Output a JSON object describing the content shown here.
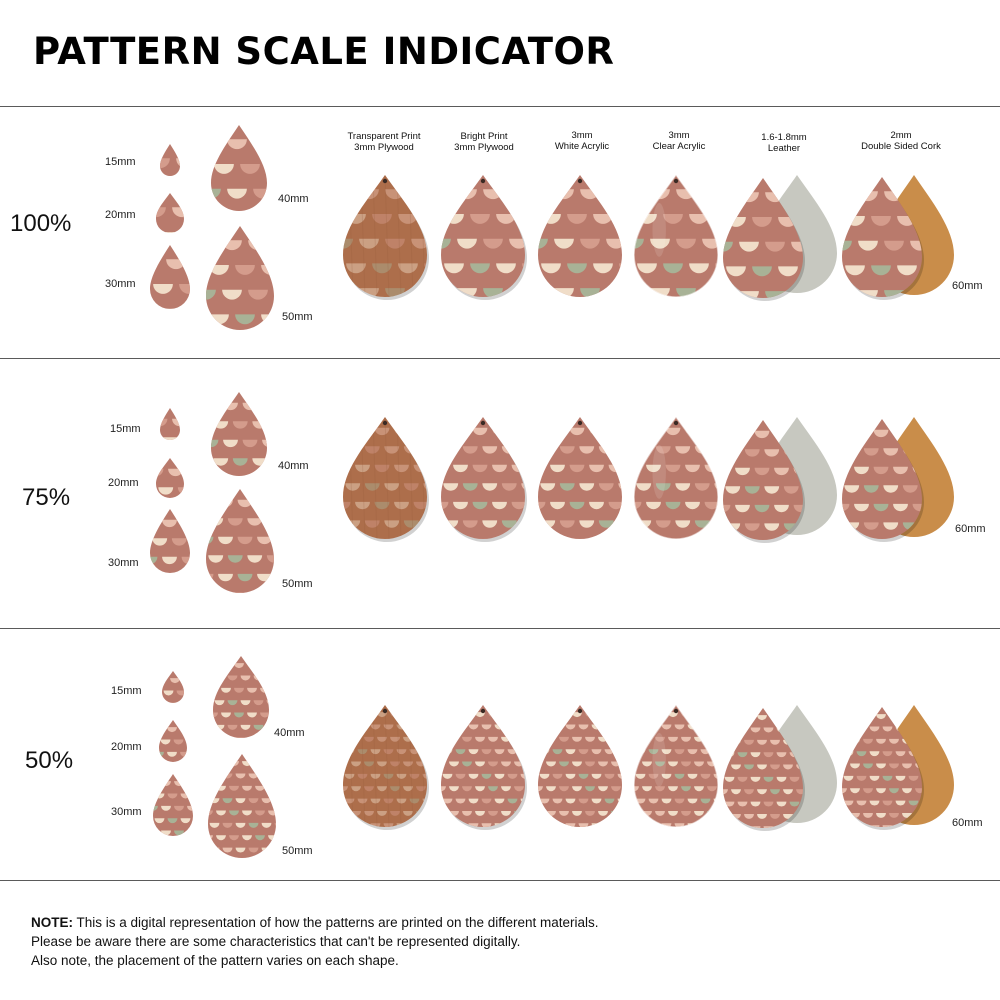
{
  "title": "PATTERN SCALE INDICATOR",
  "colors": {
    "base": "#b97a6c",
    "cream": "#f0ddc8",
    "pale_pink": "#e8bfae",
    "sage": "#a8b296",
    "rose": "#d49c8c",
    "plywood": "#ad6e4b",
    "cork": "#c98d4a",
    "suede": "#c7c8c0"
  },
  "size_labels": [
    "15mm",
    "20mm",
    "30mm",
    "40mm",
    "50mm"
  ],
  "materials": [
    {
      "line1": "Transparent Print",
      "line2": "3mm Plywood",
      "finish": "plywood"
    },
    {
      "line1": "Bright Print",
      "line2": "3mm Plywood",
      "finish": "bright"
    },
    {
      "line1": "3mm",
      "line2": "White Acrylic",
      "finish": "acrylic-white"
    },
    {
      "line1": "3mm",
      "line2": "Clear Acrylic",
      "finish": "acrylic-clear"
    },
    {
      "line1": "1.6-1.8mm",
      "line2": "Leather",
      "finish": "leather"
    },
    {
      "line1": "2mm",
      "line2": "Double Sided Cork",
      "finish": "cork"
    }
  ],
  "large_size_label": "60mm",
  "scales": [
    {
      "label": "100%",
      "pattern_scale": 1.0
    },
    {
      "label": "75%",
      "pattern_scale": 0.75
    },
    {
      "label": "50%",
      "pattern_scale": 0.5
    }
  ],
  "note": {
    "bold": "NOTE:",
    "line1": " This is a digital representation of how the patterns are printed on the different materials.",
    "line2": "Please be aware there are some characteristics that can't be represented digitally.",
    "line3": "Also note, the placement of the pattern varies on each shape."
  }
}
